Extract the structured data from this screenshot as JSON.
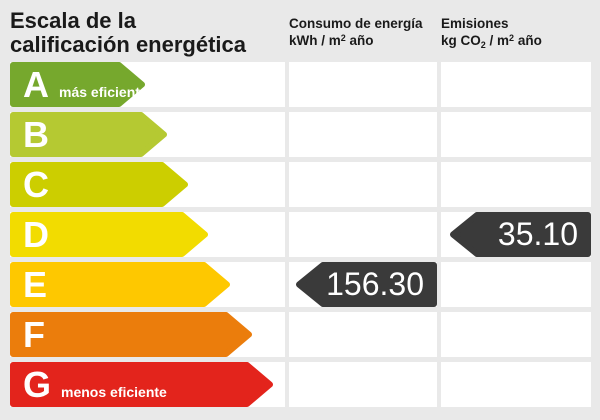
{
  "background_color": "#e9e9e9",
  "title": {
    "line1": "Escala de la",
    "line2": "calificación energética"
  },
  "columns": {
    "consumo": {
      "title": "Consumo de energía",
      "unit": {
        "pre": "kWh / m",
        "sup": "2",
        "post": " año"
      }
    },
    "emisiones": {
      "title": "Emisiones",
      "unit": {
        "pre": "kg CO",
        "sub": "2",
        "mid": " / m",
        "sup": "2",
        "post": " año"
      }
    }
  },
  "scale": {
    "rows": [
      {
        "letter": "A",
        "label": "más eficiente",
        "color": "#76a82d",
        "arrow_width": 135
      },
      {
        "letter": "B",
        "label": "",
        "color": "#b5c932",
        "arrow_width": 157
      },
      {
        "letter": "C",
        "label": "",
        "color": "#ccce00",
        "arrow_width": 178
      },
      {
        "letter": "D",
        "label": "",
        "color": "#f2dc00",
        "arrow_width": 198
      },
      {
        "letter": "E",
        "label": "",
        "color": "#fec800",
        "arrow_width": 220
      },
      {
        "letter": "F",
        "label": "",
        "color": "#eb7d0c",
        "arrow_width": 242
      },
      {
        "letter": "G",
        "label": "menos eficiente",
        "color": "#e3241c",
        "arrow_width": 263
      }
    ]
  },
  "values": {
    "badge_color": "#3a3a3a",
    "consumo": {
      "rating": "E",
      "value": "156.30"
    },
    "emisiones": {
      "rating": "D",
      "value": "35.10"
    }
  },
  "chart_data": {
    "type": "bar",
    "title": "Escala de la calificación energética",
    "orientation": "horizontal",
    "categories": [
      "A",
      "B",
      "C",
      "D",
      "E",
      "F",
      "G"
    ],
    "bar_relative_lengths": [
      135,
      157,
      178,
      198,
      220,
      242,
      263
    ],
    "bar_colors": [
      "#76a82d",
      "#b5c932",
      "#ccce00",
      "#f2dc00",
      "#fec800",
      "#eb7d0c",
      "#e3241c"
    ],
    "annotations": {
      "A": "más eficiente",
      "G": "menos eficiente"
    },
    "grid": false,
    "legend_position": "none",
    "indicators": [
      {
        "metric": "Consumo de energía",
        "unit": "kWh / m2 año",
        "rating": "E",
        "value": 156.3
      },
      {
        "metric": "Emisiones",
        "unit": "kg CO2 / m2 año",
        "rating": "D",
        "value": 35.1
      }
    ]
  }
}
